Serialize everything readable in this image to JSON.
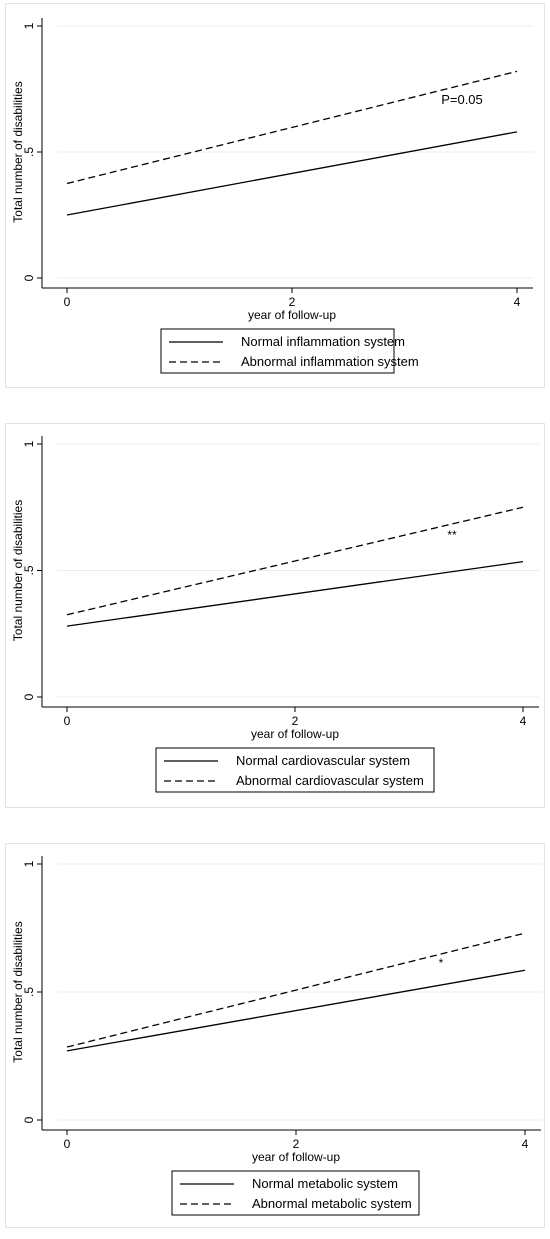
{
  "chart_data": [
    {
      "type": "line",
      "xlabel": "year of follow-up",
      "ylabel": "Total number of disabilities",
      "xlim": [
        0,
        4
      ],
      "ylim": [
        0,
        1
      ],
      "xticks": [
        "0",
        "2",
        "4"
      ],
      "yticks": [
        "0",
        ".5",
        "1"
      ],
      "grid": true,
      "legend_position": "bottom",
      "annotation": "P=0.05",
      "series": [
        {
          "name": "Normal inflammation system",
          "style": "solid",
          "x": [
            0,
            4
          ],
          "y": [
            0.25,
            0.58
          ]
        },
        {
          "name": "Abnormal inflammation system",
          "style": "dashed",
          "x": [
            0,
            4
          ],
          "y": [
            0.375,
            0.82
          ]
        }
      ]
    },
    {
      "type": "line",
      "xlabel": "year of follow-up",
      "ylabel": "Total number of disabilities",
      "xlim": [
        0,
        4
      ],
      "ylim": [
        0,
        1
      ],
      "xticks": [
        "0",
        "2",
        "4"
      ],
      "yticks": [
        "0",
        ".5",
        "1"
      ],
      "grid": true,
      "legend_position": "bottom",
      "annotation": "**",
      "series": [
        {
          "name": "Normal cardiovascular system",
          "style": "solid",
          "x": [
            0,
            4
          ],
          "y": [
            0.28,
            0.535
          ]
        },
        {
          "name": "Abnormal cardiovascular system",
          "style": "dashed",
          "x": [
            0,
            4
          ],
          "y": [
            0.325,
            0.75
          ]
        }
      ]
    },
    {
      "type": "line",
      "xlabel": "year of follow-up",
      "ylabel": "Total number of disabilities",
      "xlim": [
        0,
        4
      ],
      "ylim": [
        0,
        1
      ],
      "xticks": [
        "0",
        "2",
        "4"
      ],
      "yticks": [
        "0",
        ".5",
        "1"
      ],
      "grid": true,
      "legend_position": "bottom",
      "annotation": "*",
      "series": [
        {
          "name": "Normal metabolic system",
          "style": "solid",
          "x": [
            0,
            4
          ],
          "y": [
            0.27,
            0.585
          ]
        },
        {
          "name": "Abnormal metabolic system",
          "style": "dashed",
          "x": [
            0,
            4
          ],
          "y": [
            0.285,
            0.73
          ]
        }
      ]
    }
  ],
  "colors": {
    "line": "#000000",
    "grid": "#e8eef0",
    "panel_border": "#dfe3ea"
  }
}
